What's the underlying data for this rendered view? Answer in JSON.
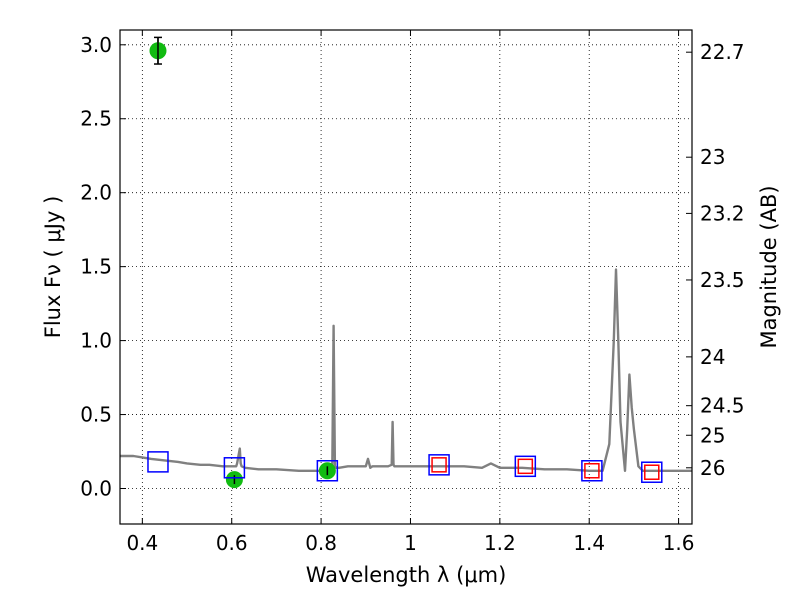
{
  "chart_data": {
    "type": "scatter",
    "xlabel": "Wavelength  λ (μm)",
    "ylabel": "Flux  Fν  ( μJy )",
    "ylabel_right": "Magnitude (AB)",
    "xlim": [
      0.35,
      1.63
    ],
    "ylim": [
      -0.24,
      3.1
    ],
    "grid": true,
    "xticks": [
      0.4,
      0.6,
      0.8,
      1.0,
      1.2,
      1.4,
      1.6
    ],
    "xtick_labels": [
      "0.4",
      "0.6",
      "0.8",
      "1",
      "1.2",
      "1.4",
      "1.6"
    ],
    "yticks": [
      0.0,
      0.5,
      1.0,
      1.5,
      2.0,
      2.5,
      3.0
    ],
    "ytick_labels": [
      "0.0",
      "0.5",
      "1.0",
      "1.5",
      "2.0",
      "2.5",
      "3.0"
    ],
    "right_ticks": [
      {
        "label": "22.7",
        "flux": 2.95
      },
      {
        "label": "23",
        "flux": 2.24
      },
      {
        "label": "23.2",
        "flux": 1.86
      },
      {
        "label": "23.5",
        "flux": 1.41
      },
      {
        "label": "24",
        "flux": 0.89
      },
      {
        "label": "24.5",
        "flux": 0.56
      },
      {
        "label": "25",
        "flux": 0.36
      },
      {
        "label": "26",
        "flux": 0.14
      }
    ],
    "series": [
      {
        "style": "line",
        "color": "#808080",
        "x": [
          0.35,
          0.38,
          0.4,
          0.42,
          0.45,
          0.48,
          0.5,
          0.53,
          0.55,
          0.58,
          0.6,
          0.61,
          0.612,
          0.618,
          0.62,
          0.622,
          0.63,
          0.66,
          0.7,
          0.75,
          0.8,
          0.81,
          0.82,
          0.825,
          0.828,
          0.831,
          0.834,
          0.84,
          0.86,
          0.88,
          0.9,
          0.905,
          0.91,
          0.915,
          0.92,
          0.95,
          0.958,
          0.96,
          0.962,
          0.964,
          0.966,
          0.97,
          1.0,
          1.04,
          1.08,
          1.12,
          1.16,
          1.18,
          1.2,
          1.25,
          1.3,
          1.35,
          1.4,
          1.43,
          1.445,
          1.455,
          1.46,
          1.465,
          1.47,
          1.48,
          1.485,
          1.49,
          1.495,
          1.5,
          1.51,
          1.52,
          1.54,
          1.58,
          1.63
        ],
        "y": [
          0.22,
          0.22,
          0.21,
          0.2,
          0.19,
          0.18,
          0.17,
          0.16,
          0.16,
          0.15,
          0.15,
          0.15,
          0.17,
          0.27,
          0.17,
          0.15,
          0.14,
          0.13,
          0.13,
          0.12,
          0.12,
          0.13,
          0.13,
          0.15,
          1.1,
          0.15,
          0.14,
          0.14,
          0.15,
          0.15,
          0.15,
          0.2,
          0.14,
          0.15,
          0.15,
          0.15,
          0.16,
          0.45,
          0.16,
          0.15,
          0.15,
          0.15,
          0.15,
          0.15,
          0.15,
          0.15,
          0.14,
          0.17,
          0.14,
          0.14,
          0.13,
          0.13,
          0.12,
          0.12,
          0.3,
          1.0,
          1.48,
          1.0,
          0.45,
          0.12,
          0.4,
          0.77,
          0.55,
          0.4,
          0.15,
          0.12,
          0.12,
          0.12,
          0.12
        ]
      },
      {
        "style": "scatter",
        "marker": "circle",
        "color": "#11bb11",
        "x": [
          0.435,
          0.606,
          0.814
        ],
        "y": [
          2.96,
          0.06,
          0.12
        ],
        "yerr": [
          0.09,
          0.03,
          0.03
        ]
      },
      {
        "style": "scatter",
        "marker": "square",
        "color": "#0000ff",
        "x": [
          0.435,
          0.606,
          0.814,
          1.064,
          1.257,
          1.406,
          1.54
        ],
        "y": [
          0.18,
          0.14,
          0.12,
          0.16,
          0.15,
          0.12,
          0.11
        ]
      },
      {
        "style": "scatter",
        "marker": "square",
        "color": "#ff0000",
        "x": [
          1.064,
          1.257,
          1.406,
          1.54
        ],
        "y": [
          0.16,
          0.15,
          0.12,
          0.11
        ]
      }
    ]
  }
}
